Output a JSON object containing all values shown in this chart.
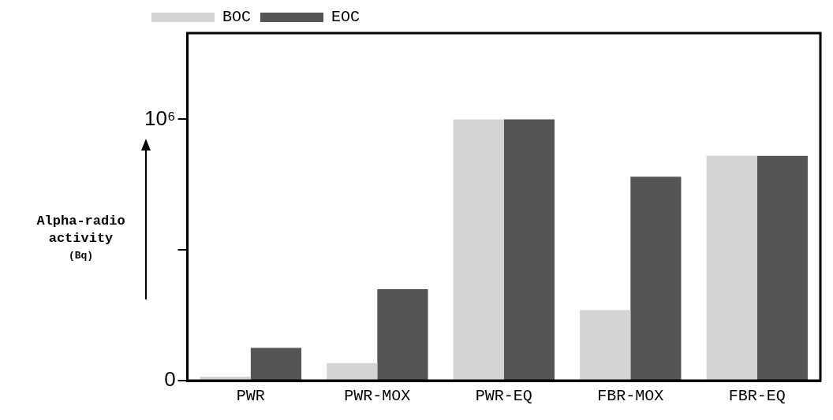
{
  "chart_data": {
    "type": "bar",
    "ylabel": "Alpha-radio activity (Bq)",
    "categories": [
      "PWR",
      "PWR-MOX",
      "PWR-EQ",
      "FBR-MOX",
      "FBR-EQ"
    ],
    "series": [
      {
        "name": "BOC",
        "color": "#d4d4d4",
        "values": [
          15000,
          67000,
          1000000,
          270000,
          860000
        ]
      },
      {
        "name": "EOC",
        "color": "#555555",
        "values": [
          125000,
          350000,
          1000000,
          780000,
          860000
        ]
      }
    ],
    "ylim": [
      0,
      1330000
    ],
    "yticks": [
      0,
      {
        "value": 500000,
        "label": null
      },
      {
        "value": 1000000,
        "label": "10⁶"
      }
    ],
    "legend": "top",
    "grid": false
  }
}
